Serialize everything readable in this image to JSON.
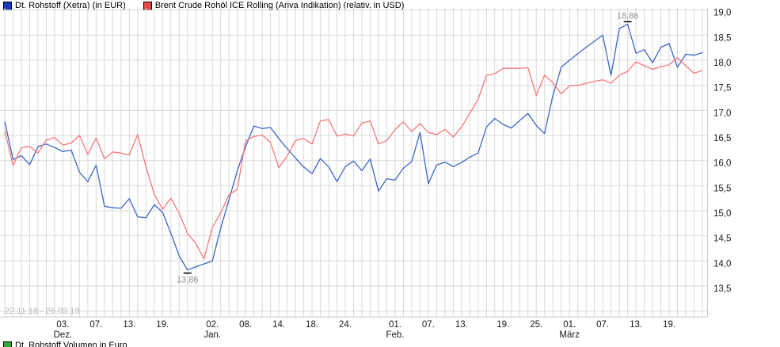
{
  "legend": {
    "series1": {
      "label": "Dt. Rohstoff (Xetra) (in EUR)",
      "swatch_color": "#1a38c2"
    },
    "series2": {
      "label": "Brent Crude Rohöl ICE Rolling (Ariva Indikation) (relativ, in USD)",
      "swatch_color": "#e84444"
    }
  },
  "bottom_legend": {
    "label": "Dt. Rohstoff Volumen in Euro",
    "swatch_color": "#33aa33"
  },
  "watermark": "22.11.18 - 26.03.19",
  "annotations": {
    "high": {
      "label": "18,86",
      "day_index": 75,
      "series": "Dt. Rohstoff"
    },
    "low": {
      "label": "13,86",
      "day_index": 22,
      "series": "Dt. Rohstoff"
    }
  },
  "layout_colors": {
    "grid": "#d9d9d9",
    "border": "#c8c8c8",
    "axis_text": "#1a1a1a",
    "annotation_text": "#909090",
    "annotation_tick": "#000000",
    "watermark": "#bcbcbc"
  },
  "chart_data": {
    "type": "line",
    "title": "",
    "period_label": "22.11.18 - 26.03.19",
    "grid": true,
    "legend_position": "top",
    "ylim": [
      13.2,
      19.15
    ],
    "y_ticks": [
      {
        "label": "19,0",
        "value": 19.0
      },
      {
        "label": "18,5",
        "value": 18.5
      },
      {
        "label": "18,0",
        "value": 18.0
      },
      {
        "label": "17,5",
        "value": 17.5
      },
      {
        "label": "17,0",
        "value": 17.0
      },
      {
        "label": "16,5",
        "value": 16.5
      },
      {
        "label": "16,0",
        "value": 16.0
      },
      {
        "label": "15,5",
        "value": 15.5
      },
      {
        "label": "15,0",
        "value": 15.0
      },
      {
        "label": "14,5",
        "value": 14.5
      },
      {
        "label": "14,0",
        "value": 14.0
      },
      {
        "label": "13,5",
        "value": 13.5
      }
    ],
    "x_ticks": [
      {
        "label": "03.",
        "sub": "Dez.",
        "day": 7
      },
      {
        "label": "07.",
        "day": 11
      },
      {
        "label": "13.",
        "day": 15
      },
      {
        "label": "19.",
        "day": 19
      },
      {
        "label": "02.",
        "sub": "Jan.",
        "day": 25
      },
      {
        "label": "08.",
        "day": 29
      },
      {
        "label": "14.",
        "day": 33
      },
      {
        "label": "18.",
        "day": 37
      },
      {
        "label": "24.",
        "day": 41
      },
      {
        "label": "01.",
        "sub": "Feb.",
        "day": 47
      },
      {
        "label": "07.",
        "day": 51
      },
      {
        "label": "13.",
        "day": 55
      },
      {
        "label": "19.",
        "day": 60
      },
      {
        "label": "25.",
        "day": 64
      },
      {
        "label": "01.",
        "sub": "März",
        "day": 68
      },
      {
        "label": "07.",
        "day": 72
      },
      {
        "label": "13.",
        "day": 76
      },
      {
        "label": "19.",
        "day": 80
      }
    ],
    "series": [
      {
        "name": "Dt. Rohstoff (Xetra) (in EUR)",
        "color": "#3a66c8",
        "values": [
          16.78,
          16.02,
          16.1,
          15.92,
          16.28,
          16.33,
          16.26,
          16.18,
          16.21,
          15.77,
          15.58,
          15.91,
          15.09,
          15.06,
          15.05,
          15.24,
          14.88,
          14.86,
          15.12,
          14.97,
          14.55,
          14.1,
          13.82,
          13.88,
          13.94,
          14.0,
          14.65,
          15.22,
          15.8,
          16.28,
          16.69,
          16.64,
          16.66,
          16.44,
          16.24,
          16.05,
          15.87,
          15.74,
          16.04,
          15.88,
          15.58,
          15.88,
          15.99,
          15.8,
          16.03,
          15.39,
          15.64,
          15.61,
          15.85,
          15.98,
          16.56,
          15.54,
          15.91,
          15.97,
          15.88,
          15.96,
          16.07,
          16.15,
          16.67,
          16.84,
          16.72,
          16.65,
          16.8,
          16.94,
          16.7,
          16.54,
          17.3,
          17.86,
          18.0,
          18.13,
          18.26,
          18.38,
          18.5,
          17.7,
          18.63,
          18.72,
          18.14,
          18.21,
          17.95,
          18.26,
          18.33,
          17.86,
          18.12,
          18.1,
          18.15
        ]
      },
      {
        "name": "Brent Crude Rohöl ICE Rolling (Ariva Indikation) (relativ, in USD)",
        "color": "#f57878",
        "values": [
          16.6,
          15.9,
          16.26,
          16.28,
          16.15,
          16.41,
          16.46,
          16.31,
          16.35,
          16.5,
          16.12,
          16.45,
          16.04,
          16.17,
          16.15,
          16.11,
          16.52,
          15.88,
          15.33,
          15.03,
          15.25,
          14.95,
          14.55,
          14.35,
          14.04,
          14.67,
          14.96,
          15.32,
          15.43,
          16.4,
          16.48,
          16.51,
          16.36,
          15.86,
          16.09,
          16.4,
          16.44,
          16.33,
          16.79,
          16.82,
          16.49,
          16.53,
          16.49,
          16.75,
          16.79,
          16.33,
          16.4,
          16.62,
          16.77,
          16.58,
          16.74,
          16.56,
          16.52,
          16.62,
          16.47,
          16.67,
          16.94,
          17.22,
          17.7,
          17.73,
          17.84,
          17.84,
          17.84,
          17.85,
          17.3,
          17.7,
          17.55,
          17.33,
          17.49,
          17.5,
          17.54,
          17.58,
          17.61,
          17.54,
          17.7,
          17.78,
          17.97,
          17.89,
          17.82,
          17.87,
          17.91,
          18.05,
          17.89,
          17.74,
          17.8
        ]
      }
    ]
  }
}
